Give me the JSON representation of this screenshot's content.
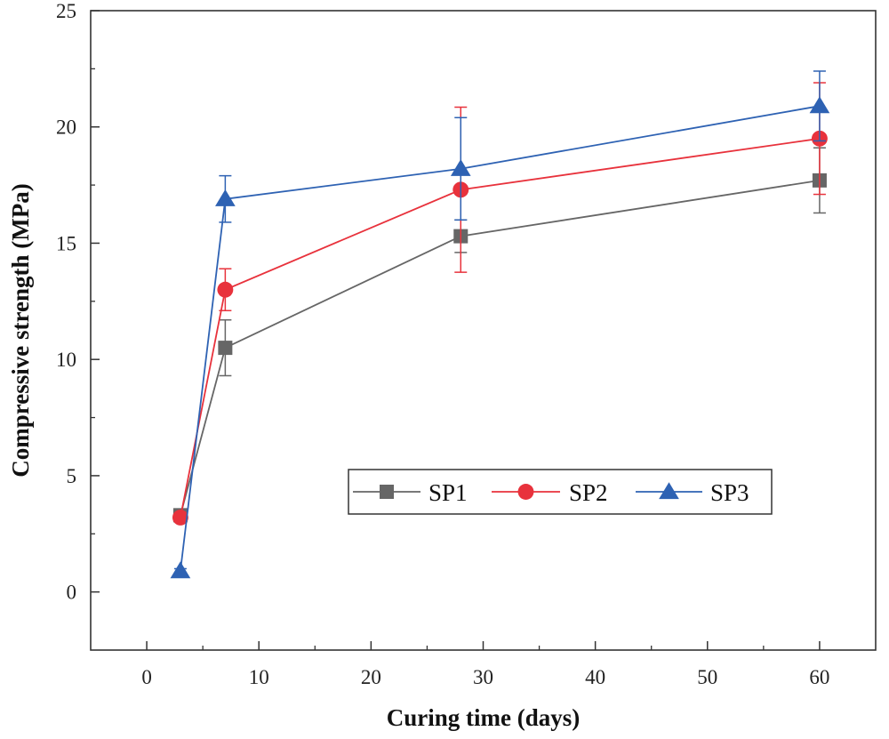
{
  "chart_data": {
    "type": "line",
    "xlabel": "Curing time (days)",
    "ylabel": "Compressive strength (MPa)",
    "xlim": [
      -5,
      65
    ],
    "ylim": [
      -2.5,
      25
    ],
    "xticks": [
      0,
      10,
      20,
      30,
      40,
      50,
      60
    ],
    "yticks": [
      0,
      5,
      10,
      15,
      20,
      25
    ],
    "grid": false,
    "legend_position": "center-right",
    "series": [
      {
        "name": "SP1",
        "color": "#666666",
        "marker": "square",
        "x": [
          3,
          7,
          28,
          60
        ],
        "y": [
          3.3,
          10.5,
          15.3,
          17.7
        ],
        "err": [
          0.15,
          1.2,
          0.7,
          1.4
        ]
      },
      {
        "name": "SP2",
        "color": "#e8323c",
        "marker": "circle",
        "x": [
          3,
          7,
          28,
          60
        ],
        "y": [
          3.2,
          13.0,
          17.3,
          19.5
        ],
        "err": [
          0.15,
          0.9,
          3.55,
          2.4
        ]
      },
      {
        "name": "SP3",
        "color": "#2e62b3",
        "marker": "triangle",
        "x": [
          3,
          7,
          28,
          60
        ],
        "y": [
          0.9,
          16.9,
          18.2,
          20.9
        ],
        "err": [
          0.1,
          1.0,
          2.2,
          1.5
        ]
      }
    ]
  }
}
